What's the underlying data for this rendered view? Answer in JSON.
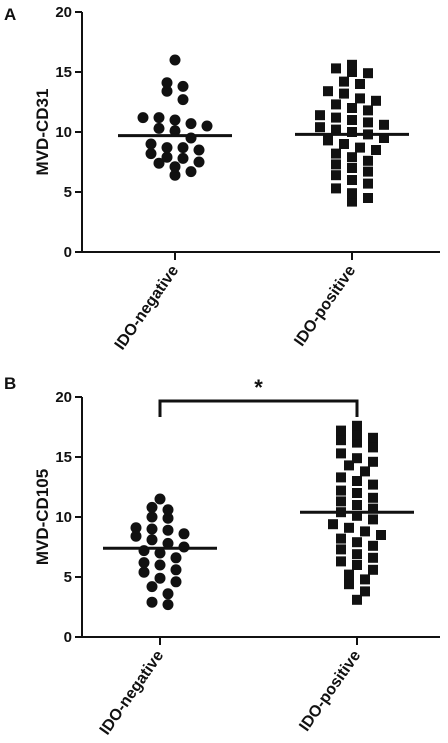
{
  "chart_data": [
    {
      "type": "scatter",
      "panel": "A",
      "ylabel": "MVD-CD31",
      "ylim": [
        0,
        20
      ],
      "yticks": [
        "0",
        "5",
        "10",
        "15",
        "20"
      ],
      "categories": [
        "IDO-negative",
        "IDO-positive"
      ],
      "grid": false,
      "series": [
        {
          "category": "IDO-negative",
          "marker": "circle",
          "mean": 9.7,
          "values": [
            16.0,
            14.1,
            13.8,
            13.4,
            12.7,
            11.2,
            11.2,
            11.0,
            10.7,
            10.5,
            10.3,
            10.1,
            9.5,
            9.0,
            8.7,
            8.7,
            8.5,
            8.2,
            7.9,
            7.8,
            7.5,
            7.4,
            7.1,
            6.7,
            6.4
          ]
        },
        {
          "category": "IDO-positive",
          "marker": "square",
          "mean": 9.8,
          "values": [
            15.6,
            15.3,
            15.0,
            14.9,
            14.2,
            14.0,
            13.4,
            13.2,
            12.8,
            12.6,
            12.3,
            12.0,
            11.8,
            11.4,
            11.2,
            11.0,
            10.8,
            10.6,
            10.4,
            10.2,
            10.0,
            9.8,
            9.5,
            9.3,
            9.0,
            8.7,
            8.5,
            8.2,
            7.9,
            7.6,
            7.3,
            7.0,
            6.7,
            6.4,
            6.0,
            5.7,
            5.3,
            4.9,
            4.5,
            4.2
          ]
        }
      ]
    },
    {
      "type": "scatter",
      "panel": "B",
      "ylabel": "MVD-CD105",
      "ylim": [
        0,
        20
      ],
      "yticks": [
        "0",
        "5",
        "10",
        "15",
        "20"
      ],
      "categories": [
        "IDO-negative",
        "IDO-positive"
      ],
      "grid": false,
      "significance": "*",
      "series": [
        {
          "category": "IDO-negative",
          "marker": "circle",
          "mean": 7.4,
          "values": [
            11.5,
            10.8,
            10.6,
            10.0,
            9.9,
            9.1,
            9.0,
            8.9,
            8.6,
            8.4,
            8.1,
            7.8,
            7.5,
            7.2,
            7.0,
            6.6,
            6.2,
            6.0,
            5.6,
            5.4,
            4.9,
            4.6,
            4.2,
            3.6,
            2.9,
            2.7
          ]
        },
        {
          "category": "IDO-positive",
          "marker": "square",
          "mean": 10.4,
          "values": [
            17.6,
            17.2,
            16.9,
            16.6,
            16.4,
            16.2,
            15.8,
            15.3,
            14.9,
            14.6,
            14.3,
            13.8,
            13.3,
            13.0,
            12.7,
            12.2,
            12.0,
            11.6,
            11.3,
            11.0,
            10.7,
            10.4,
            10.1,
            9.8,
            9.4,
            9.1,
            8.8,
            8.5,
            8.2,
            7.9,
            7.6,
            7.3,
            6.9,
            6.6,
            6.3,
            6.0,
            5.6,
            5.2,
            4.8,
            4.4,
            3.8,
            3.1
          ]
        }
      ]
    }
  ]
}
